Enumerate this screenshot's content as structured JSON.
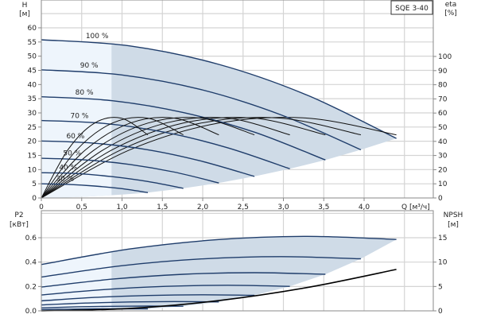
{
  "chart_data": [
    {
      "type": "line",
      "title": "",
      "legend_box": "SQE 3-40",
      "xlabel": "Q [м³/ч]",
      "ylabel_left": {
        "name": "H",
        "unit": "[м]"
      },
      "ylabel_right": {
        "name": "eta",
        "unit": "[%]"
      },
      "xlim": [
        0,
        4.8
      ],
      "ylim_left": [
        0,
        70
      ],
      "ylim_right": [
        0,
        140
      ],
      "x_ticks": [
        "0",
        "0,5",
        "1,0",
        "1,5",
        "2,0",
        "2,5",
        "3,0",
        "3,5",
        "4,0"
      ],
      "y_ticks_left": [
        "0",
        "5",
        "10",
        "15",
        "20",
        "25",
        "30",
        "35",
        "40",
        "45",
        "50",
        "55",
        "60"
      ],
      "y_ticks_right": [
        "0",
        "10",
        "20",
        "30",
        "40",
        "50",
        "60",
        "70",
        "80",
        "90",
        "100"
      ],
      "grid": true,
      "colors": {
        "head_curve": "#1f3d6b",
        "eta_curve": "#111111",
        "operating_area": "#cfdbe7",
        "low_flow_area": "#eef5fc"
      },
      "low_flow_limit_q": 0.87,
      "series": [
        {
          "name": "100 %",
          "Q": [
            0,
            1.1,
            2.2,
            3.3,
            4.4
          ],
          "H": [
            55.8,
            53.6,
            47.1,
            36.2,
            21.0
          ],
          "eta": [
            0,
            34.1,
            52.9,
            56.4,
            44.6
          ]
        },
        {
          "name": "90 %",
          "Q": [
            0,
            0.99,
            1.98,
            2.97,
            3.96
          ],
          "H": [
            45.2,
            43.4,
            38.2,
            29.3,
            17.0
          ],
          "eta": [
            0,
            34.1,
            52.9,
            56.4,
            44.6
          ]
        },
        {
          "name": "80 %",
          "Q": [
            0,
            0.88,
            1.76,
            2.64,
            3.52
          ],
          "H": [
            35.7,
            34.3,
            30.1,
            23.2,
            13.4
          ],
          "eta": [
            0,
            34.1,
            52.9,
            56.4,
            44.6
          ]
        },
        {
          "name": "70 %",
          "Q": [
            0,
            0.77,
            1.54,
            2.31,
            3.08
          ],
          "H": [
            27.3,
            26.3,
            23.1,
            17.7,
            10.3
          ],
          "eta": [
            0,
            34.1,
            52.9,
            56.4,
            44.6
          ]
        },
        {
          "name": "60 %",
          "Q": [
            0,
            0.66,
            1.32,
            1.98,
            2.64
          ],
          "H": [
            20.1,
            19.3,
            17.0,
            13.0,
            7.6
          ],
          "eta": [
            0,
            34.1,
            52.9,
            56.4,
            44.6
          ]
        },
        {
          "name": "50 %",
          "Q": [
            0,
            0.55,
            1.1,
            1.65,
            2.2
          ],
          "H": [
            14.0,
            13.4,
            11.8,
            9.1,
            5.3
          ],
          "eta": [
            0,
            34.1,
            52.9,
            56.4,
            44.6
          ]
        },
        {
          "name": "40 %",
          "Q": [
            0,
            0.44,
            0.88,
            1.32,
            1.76
          ],
          "H": [
            8.9,
            8.6,
            7.5,
            5.8,
            3.4
          ],
          "eta": [
            0,
            34.1,
            52.9,
            56.4,
            44.6
          ]
        },
        {
          "name": "30 %",
          "Q": [
            0,
            0.33,
            0.66,
            0.99,
            1.32
          ],
          "H": [
            5.0,
            4.8,
            4.2,
            3.3,
            1.9
          ],
          "eta": [
            0,
            34.1,
            52.9,
            56.4,
            44.6
          ]
        }
      ]
    },
    {
      "type": "line",
      "title": "",
      "ylabel_left": {
        "name": "P2",
        "unit": "[кВт]"
      },
      "ylabel_right": {
        "name": "NPSH",
        "unit": "[м]"
      },
      "xlim": [
        0,
        4.8
      ],
      "ylim_left": [
        0,
        0.82
      ],
      "ylim_right": [
        0,
        20.5
      ],
      "y_ticks_left": [
        "0.0",
        "0.2",
        "0.4",
        "0.6"
      ],
      "y_ticks_right": [
        "0",
        "5",
        "10",
        "15"
      ],
      "grid": true,
      "series": [
        {
          "speed": "100 %",
          "Q": [
            0,
            1.1,
            2.2,
            3.3,
            4.4
          ],
          "P2": [
            0.38,
            0.508,
            0.585,
            0.611,
            0.586
          ]
        },
        {
          "speed": "90 %",
          "Q": [
            0,
            0.99,
            1.98,
            2.97,
            3.96
          ],
          "P2": [
            0.277,
            0.37,
            0.426,
            0.445,
            0.427
          ]
        },
        {
          "speed": "80 %",
          "Q": [
            0,
            0.88,
            1.76,
            2.64,
            3.52
          ],
          "P2": [
            0.195,
            0.26,
            0.3,
            0.313,
            0.3
          ]
        },
        {
          "speed": "70 %",
          "Q": [
            0,
            0.77,
            1.54,
            2.31,
            3.08
          ],
          "P2": [
            0.13,
            0.174,
            0.201,
            0.21,
            0.201
          ]
        },
        {
          "speed": "60 %",
          "Q": [
            0,
            0.66,
            1.32,
            1.98,
            2.64
          ],
          "P2": [
            0.082,
            0.11,
            0.126,
            0.132,
            0.127
          ]
        },
        {
          "speed": "50 %",
          "Q": [
            0,
            0.55,
            1.1,
            1.65,
            2.2
          ],
          "P2": [
            0.048,
            0.064,
            0.073,
            0.076,
            0.073
          ]
        },
        {
          "speed": "40 %",
          "Q": [
            0,
            0.44,
            0.88,
            1.32,
            1.76
          ],
          "P2": [
            0.024,
            0.033,
            0.037,
            0.039,
            0.038
          ]
        },
        {
          "speed": "30 %",
          "Q": [
            0,
            0.33,
            0.66,
            0.99,
            1.32
          ],
          "P2": [
            0.01,
            0.014,
            0.016,
            0.016,
            0.016
          ]
        }
      ],
      "npsh": {
        "Q": [
          0,
          1.1,
          2.2,
          3.3,
          4.4
        ],
        "NPSH": [
          0,
          0.5,
          2.1,
          4.8,
          8.5
        ]
      }
    }
  ]
}
